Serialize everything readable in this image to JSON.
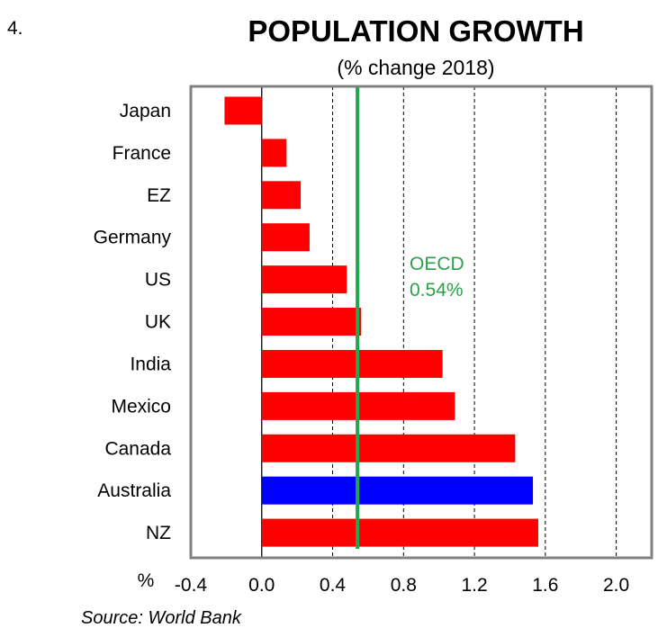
{
  "figure_number": "4.",
  "source": "Source: World Bank",
  "colors": {
    "bar": "#ff0000",
    "highlight": "#0000ff",
    "reference": "#1fa84f",
    "frame": "#808080"
  },
  "chart_data": {
    "type": "bar",
    "orientation": "horizontal",
    "title": "POPULATION GROWTH",
    "subtitle": "(% change 2018)",
    "xlabel": "%",
    "ylabel": "",
    "categories": [
      "Japan",
      "France",
      "EZ",
      "Germany",
      "US",
      "UK",
      "India",
      "Mexico",
      "Canada",
      "Australia",
      "NZ"
    ],
    "values": [
      -0.21,
      0.14,
      0.22,
      0.27,
      0.48,
      0.56,
      1.02,
      1.09,
      1.43,
      1.53,
      1.56
    ],
    "highlight_category": "Australia",
    "xlim": [
      -0.4,
      2.2
    ],
    "xticks": [
      -0.4,
      0.0,
      0.4,
      0.8,
      1.2,
      1.6,
      2.0
    ],
    "xtick_labels": [
      "-0.4",
      "0.0",
      "0.4",
      "0.8",
      "1.2",
      "1.6",
      "2.0"
    ],
    "grid": "vertical dashed",
    "reference_line": {
      "value": 0.54,
      "label_line1": "OECD",
      "label_line2": "0.54%"
    }
  }
}
